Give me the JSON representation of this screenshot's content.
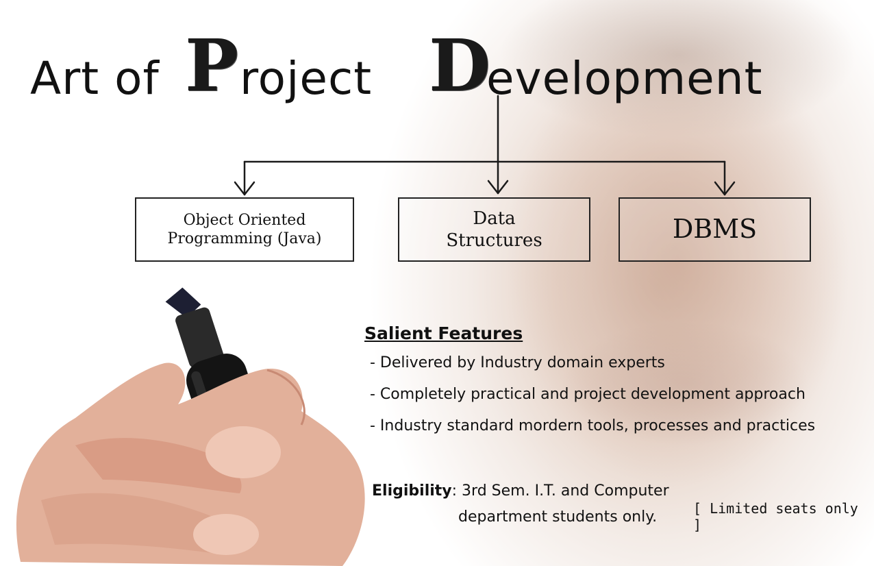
{
  "title": {
    "prefix": "Art of",
    "project_initial": "P",
    "project_rest": "roject",
    "development_initial": "D",
    "development_rest": "evelopment"
  },
  "subjects": [
    {
      "line1": "Object Oriented",
      "line2": "Programming (Java)"
    },
    {
      "line1": "Data",
      "line2": "Structures"
    },
    {
      "line1": "DBMS",
      "line2": ""
    }
  ],
  "features": {
    "heading": "Salient Features",
    "items": [
      "- Delivered by Industry domain experts",
      "- Completely practical and project development approach",
      "- Industry standard mordern tools, processes and practices"
    ]
  },
  "eligibility": {
    "label": "Eligibility",
    "line1": ": 3rd Sem. I.T. and Computer",
    "line2": "department students only.",
    "note": "[ Limited seats only ]"
  }
}
